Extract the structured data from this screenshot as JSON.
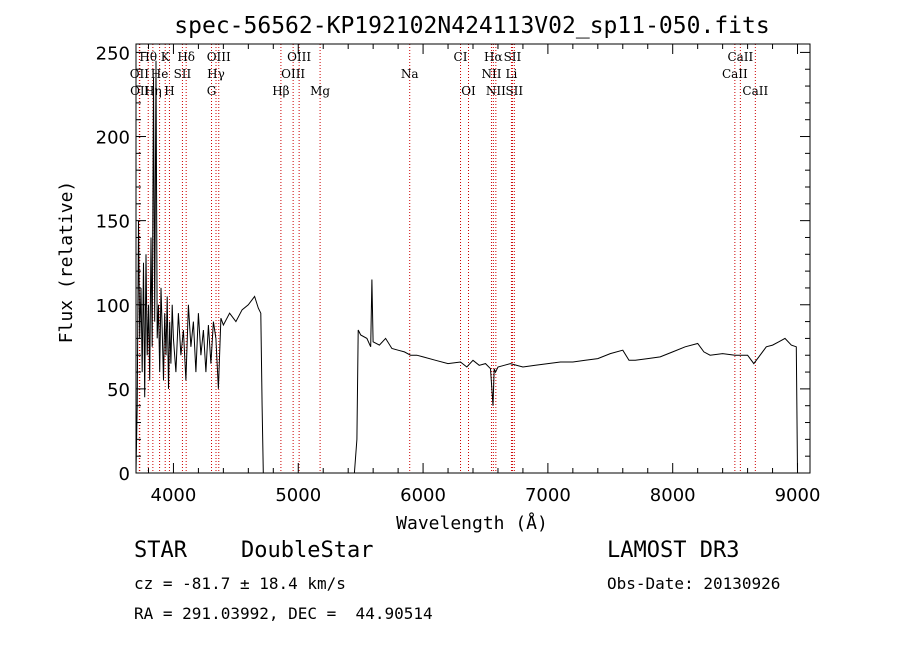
{
  "chart_data": {
    "type": "line",
    "title": "spec-56562-KP192102N424113V02_sp11-050.fits",
    "xlabel": "Wavelength (Å)",
    "ylabel": "Flux (relative)",
    "xlim": [
      3700,
      9100
    ],
    "ylim": [
      0,
      255
    ],
    "x_ticks": [
      4000,
      5000,
      6000,
      7000,
      8000,
      9000
    ],
    "y_ticks": [
      0,
      50,
      100,
      150,
      200,
      250
    ],
    "grid": false,
    "series": [
      {
        "x": [
          3700,
          3710,
          3720,
          3730,
          3740,
          3750,
          3760,
          3770,
          3780,
          3790,
          3800,
          3810,
          3820,
          3830,
          3840,
          3850,
          3860,
          3870,
          3880,
          3890,
          3900,
          3910,
          3920,
          3930,
          3940,
          3950,
          3960,
          3970,
          3980,
          3990,
          4000,
          4020,
          4040,
          4060,
          4080,
          4100,
          4120,
          4140,
          4160,
          4180,
          4200,
          4220,
          4240,
          4260,
          4280,
          4300,
          4320,
          4340,
          4360,
          4380,
          4400,
          4450,
          4500,
          4550,
          4600,
          4650,
          4680,
          4700,
          4710,
          4720,
          5450,
          5470,
          5480,
          5500,
          5550,
          5580,
          5590,
          5600,
          5650,
          5700,
          5750,
          5800,
          5850,
          5900,
          5950,
          6000,
          6100,
          6200,
          6300,
          6350,
          6400,
          6450,
          6500,
          6540,
          6560,
          6570,
          6580,
          6600,
          6650,
          6700,
          6800,
          6900,
          7000,
          7100,
          7200,
          7300,
          7400,
          7500,
          7600,
          7650,
          7700,
          7800,
          7900,
          8000,
          8100,
          8200,
          8250,
          8300,
          8400,
          8500,
          8600,
          8650,
          8700,
          8750,
          8800,
          8850,
          8900,
          8950,
          8990,
          9000
        ],
        "y": [
          0,
          40,
          150,
          80,
          110,
          60,
          125,
          45,
          130,
          70,
          100,
          55,
          140,
          75,
          235,
          90,
          245,
          80,
          100,
          60,
          110,
          85,
          55,
          95,
          70,
          105,
          50,
          90,
          65,
          100,
          80,
          60,
          95,
          70,
          85,
          55,
          100,
          75,
          90,
          60,
          95,
          70,
          85,
          60,
          88,
          65,
          90,
          80,
          50,
          92,
          88,
          95,
          90,
          97,
          100,
          105,
          98,
          95,
          40,
          0,
          0,
          20,
          85,
          82,
          80,
          75,
          115,
          78,
          76,
          80,
          74,
          73,
          72,
          70,
          70,
          69,
          67,
          65,
          66,
          63,
          67,
          64,
          65,
          62,
          40,
          62,
          60,
          63,
          64,
          65,
          63,
          64,
          65,
          66,
          66,
          67,
          68,
          71,
          73,
          67,
          67,
          68,
          69,
          72,
          75,
          77,
          72,
          70,
          71,
          70,
          70,
          65,
          70,
          75,
          76,
          78,
          80,
          76,
          75,
          0
        ]
      }
    ],
    "line_labels": [
      {
        "name": "Hθ",
        "wavelength": 3798,
        "row": 1
      },
      {
        "name": "K",
        "wavelength": 3934,
        "row": 1
      },
      {
        "name": "Hδ",
        "wavelength": 4102,
        "row": 1
      },
      {
        "name": "OIII",
        "wavelength": 4363,
        "row": 1
      },
      {
        "name": "OIII",
        "wavelength": 5007,
        "row": 1
      },
      {
        "name": "CI",
        "wavelength": 6300,
        "row": 1
      },
      {
        "name": "Hα",
        "wavelength": 6563,
        "row": 1
      },
      {
        "name": "SII",
        "wavelength": 6716,
        "row": 1
      },
      {
        "name": "CaII",
        "wavelength": 8542,
        "row": 1
      },
      {
        "name": "OII",
        "wavelength": 3727,
        "row": 2
      },
      {
        "name": "He",
        "wavelength": 3889,
        "row": 2
      },
      {
        "name": "SII",
        "wavelength": 4072,
        "row": 2
      },
      {
        "name": "Hγ",
        "wavelength": 4341,
        "row": 2
      },
      {
        "name": "OIII",
        "wavelength": 4959,
        "row": 2
      },
      {
        "name": "Na",
        "wavelength": 5893,
        "row": 2
      },
      {
        "name": "NII",
        "wavelength": 6548,
        "row": 2
      },
      {
        "name": "Li",
        "wavelength": 6708,
        "row": 2
      },
      {
        "name": "CaII",
        "wavelength": 8498,
        "row": 2
      },
      {
        "name": "OII",
        "wavelength": 3730,
        "row": 3
      },
      {
        "name": "Hη",
        "wavelength": 3835,
        "row": 3
      },
      {
        "name": "H",
        "wavelength": 3968,
        "row": 3
      },
      {
        "name": "G",
        "wavelength": 4305,
        "row": 3
      },
      {
        "name": "Hβ",
        "wavelength": 4861,
        "row": 3
      },
      {
        "name": "Mg",
        "wavelength": 5175,
        "row": 3
      },
      {
        "name": "OI",
        "wavelength": 6364,
        "row": 3
      },
      {
        "name": "NII",
        "wavelength": 6583,
        "row": 3
      },
      {
        "name": "SII",
        "wavelength": 6731,
        "row": 3
      },
      {
        "name": "CaII",
        "wavelength": 8662,
        "row": 3
      }
    ],
    "line_color": "#cc0000",
    "spectrum_color": "#000000"
  },
  "info": {
    "class": "STAR",
    "subclass": "DoubleStar",
    "survey": "LAMOST DR3",
    "cz": "cz = -81.7 ± 18.4 km/s",
    "obs_date": "Obs-Date: 20130926",
    "coords": "RA = 291.03992, DEC =  44.90514"
  }
}
